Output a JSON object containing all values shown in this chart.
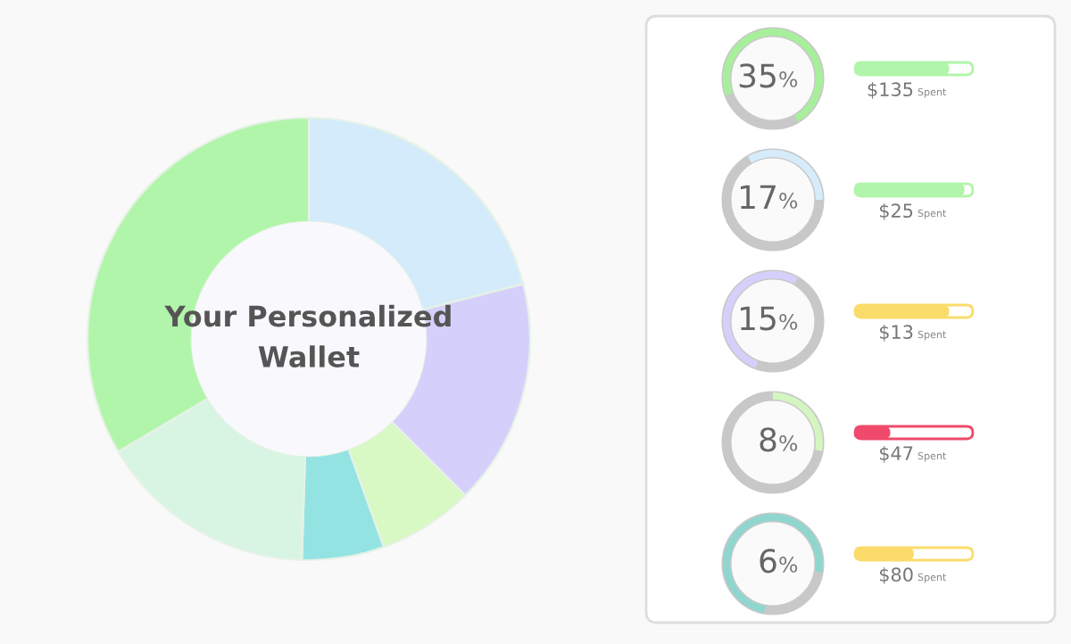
{
  "chart_data": [
    {
      "type": "donut",
      "title": "Your Personalized\nWallet",
      "categories": [
        null,
        null,
        null,
        null,
        null,
        null
      ],
      "values": [
        21,
        16.5,
        7,
        6,
        16,
        33.5
      ],
      "colors": [
        "#d4ebfb",
        "#d5d0fb",
        "#d8f8c4",
        "#94e3e3",
        "#d8f5e4",
        "#b1f5aa"
      ],
      "legend": false
    },
    {
      "type": "other",
      "annotations": [
        "35%",
        "$135 Spent",
        "17%",
        "$25 Spent",
        "15%",
        "$13 Spent",
        "8%",
        "$47 Spent",
        "6%",
        "$80 Spent"
      ]
    }
  ]
}
